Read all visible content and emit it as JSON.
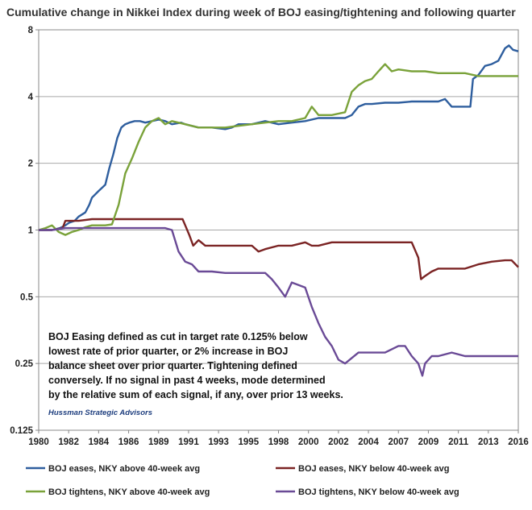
{
  "chart_data": {
    "type": "line",
    "title": "Cumulative change in Nikkei Index during week of BOJ easing/tightening and following quarter",
    "xlabel": "",
    "ylabel": "",
    "y_scale": "log2",
    "ylim": [
      0.125,
      8
    ],
    "xlim": [
      1980,
      2016
    ],
    "x_ticks": [
      "1980",
      "1982",
      "1984",
      "1986",
      "1989",
      "1991",
      "1993",
      "1995",
      "1998",
      "2000",
      "2002",
      "2004",
      "2007",
      "2009",
      "2011",
      "2013",
      "2016"
    ],
    "y_ticks": [
      "8",
      "4",
      "2",
      "1",
      "0.5",
      "0.25",
      "0.125"
    ],
    "grid": "horizontal",
    "legend_position": "bottom",
    "annotation": "BOJ Easing defined as cut in target rate 0.125% below lowest rate of prior quarter, or 2% increase in BOJ balance sheet over prior quarter.  Tightening defined conversely. If no signal in past 4 weeks, mode determined by the relative sum of each signal, if any, over prior 13 weeks.",
    "annotation_lines": [
      "BOJ Easing defined as cut in target rate 0.125% below",
      "lowest rate of prior quarter, or 2% increase in BOJ",
      "balance sheet over prior quarter.  Tightening defined",
      "conversely. If no signal in past 4 weeks, mode determined",
      "by the relative sum of each signal, if any, over prior 13 weeks."
    ],
    "credit": "Hussman Strategic Advisors",
    "series": [
      {
        "name": "BOJ eases, NKY above 40-week avg",
        "color": "#2e5e9e",
        "x": [
          1980.0,
          1981.0,
          1981.6,
          1982.0,
          1982.3,
          1982.7,
          1983.0,
          1983.5,
          1983.8,
          1984.0,
          1984.5,
          1985.0,
          1985.3,
          1985.6,
          1985.9,
          1986.2,
          1986.5,
          1986.8,
          1987.2,
          1987.6,
          1988.0,
          1988.5,
          1989.0,
          1989.5,
          1990.0,
          1990.7,
          1991.0,
          1992.0,
          1993.0,
          1994.0,
          1994.5,
          1995.0,
          1996.0,
          1997.0,
          1998.0,
          1999.0,
          2000.0,
          2001.0,
          2002.0,
          2003.0,
          2003.5,
          2004.0,
          2004.5,
          2005.0,
          2006.0,
          2007.0,
          2008.0,
          2009.0,
          2010.0,
          2010.5,
          2011.0,
          2011.5,
          2012.0,
          2012.4,
          2012.6,
          2013.0,
          2013.5,
          2014.0,
          2014.5,
          2015.0,
          2015.3,
          2015.6,
          2016.0
        ],
        "values": [
          1.0,
          1.0,
          1.02,
          1.05,
          1.08,
          1.1,
          1.15,
          1.2,
          1.3,
          1.4,
          1.5,
          1.6,
          1.9,
          2.2,
          2.6,
          2.9,
          3.0,
          3.05,
          3.1,
          3.1,
          3.05,
          3.1,
          3.15,
          3.1,
          3.0,
          3.05,
          3.0,
          2.9,
          2.9,
          2.85,
          2.9,
          3.0,
          3.0,
          3.1,
          3.0,
          3.05,
          3.1,
          3.2,
          3.2,
          3.2,
          3.3,
          3.6,
          3.7,
          3.7,
          3.75,
          3.75,
          3.8,
          3.8,
          3.8,
          3.9,
          3.6,
          3.6,
          3.6,
          3.6,
          4.8,
          5.0,
          5.5,
          5.6,
          5.8,
          6.6,
          6.8,
          6.5,
          6.4
        ]
      },
      {
        "name": "BOJ eases, NKY below 40-week avg",
        "color": "#7b2424",
        "x": [
          1980.0,
          1981.0,
          1981.8,
          1982.0,
          1983.0,
          1984.0,
          1985.0,
          1986.0,
          1987.0,
          1988.0,
          1989.0,
          1990.0,
          1990.8,
          1991.0,
          1991.3,
          1991.6,
          1992.0,
          1992.5,
          1993.0,
          1993.5,
          1994.0,
          1995.0,
          1996.0,
          1996.5,
          1997.0,
          1998.0,
          1999.0,
          2000.0,
          2000.5,
          2001.0,
          2002.0,
          2003.0,
          2004.0,
          2005.0,
          2006.0,
          2007.0,
          2008.0,
          2008.5,
          2008.7,
          2009.0,
          2009.5,
          2010.0,
          2010.5,
          2011.0,
          2012.0,
          2013.0,
          2014.0,
          2015.0,
          2015.5,
          2016.0
        ],
        "values": [
          1.0,
          1.0,
          1.02,
          1.1,
          1.1,
          1.12,
          1.12,
          1.12,
          1.12,
          1.12,
          1.12,
          1.12,
          1.12,
          1.05,
          0.95,
          0.85,
          0.9,
          0.85,
          0.85,
          0.85,
          0.85,
          0.85,
          0.85,
          0.8,
          0.82,
          0.85,
          0.85,
          0.88,
          0.85,
          0.85,
          0.88,
          0.88,
          0.88,
          0.88,
          0.88,
          0.88,
          0.88,
          0.75,
          0.6,
          0.62,
          0.65,
          0.67,
          0.67,
          0.67,
          0.67,
          0.7,
          0.72,
          0.73,
          0.73,
          0.68
        ]
      },
      {
        "name": "BOJ tightens, NKY above 40-week avg",
        "color": "#7aa23a",
        "x": [
          1980.0,
          1980.5,
          1981.0,
          1981.5,
          1982.0,
          1982.5,
          1983.0,
          1983.5,
          1984.0,
          1985.0,
          1985.5,
          1986.0,
          1986.5,
          1987.0,
          1987.5,
          1988.0,
          1988.5,
          1989.0,
          1989.5,
          1990.0,
          1991.0,
          1992.0,
          1993.0,
          1994.0,
          1995.0,
          1996.0,
          1997.0,
          1998.0,
          1999.0,
          2000.0,
          2000.5,
          2001.0,
          2002.0,
          2003.0,
          2003.5,
          2004.0,
          2004.5,
          2005.0,
          2005.5,
          2006.0,
          2006.5,
          2007.0,
          2008.0,
          2009.0,
          2010.0,
          2011.0,
          2012.0,
          2013.0,
          2014.0,
          2015.0,
          2016.0
        ],
        "values": [
          1.0,
          1.02,
          1.05,
          0.98,
          0.95,
          0.98,
          1.0,
          1.03,
          1.05,
          1.05,
          1.06,
          1.3,
          1.8,
          2.1,
          2.5,
          2.9,
          3.1,
          3.2,
          3.0,
          3.1,
          3.0,
          2.9,
          2.9,
          2.9,
          2.95,
          3.0,
          3.05,
          3.1,
          3.1,
          3.2,
          3.6,
          3.3,
          3.3,
          3.4,
          4.2,
          4.5,
          4.7,
          4.8,
          5.2,
          5.6,
          5.2,
          5.3,
          5.2,
          5.2,
          5.1,
          5.1,
          5.1,
          4.95,
          4.95,
          4.95,
          4.95
        ]
      },
      {
        "name": "BOJ tightens, NKY below 40-week avg",
        "color": "#6a4a96",
        "x": [
          1980.0,
          1981.0,
          1982.0,
          1983.0,
          1984.0,
          1985.0,
          1986.0,
          1987.0,
          1988.0,
          1989.0,
          1989.5,
          1990.0,
          1990.5,
          1991.0,
          1991.5,
          1992.0,
          1993.0,
          1994.0,
          1995.0,
          1996.0,
          1997.0,
          1997.5,
          1998.0,
          1998.5,
          1999.0,
          2000.0,
          2000.5,
          2001.0,
          2001.5,
          2002.0,
          2002.5,
          2003.0,
          2004.0,
          2005.0,
          2006.0,
          2007.0,
          2007.5,
          2008.0,
          2008.5,
          2008.8,
          2009.0,
          2009.5,
          2010.0,
          2011.0,
          2012.0,
          2013.0,
          2014.0,
          2015.0,
          2016.0
        ],
        "values": [
          1.0,
          1.0,
          1.02,
          1.02,
          1.02,
          1.02,
          1.02,
          1.02,
          1.02,
          1.02,
          1.02,
          1.0,
          0.8,
          0.72,
          0.7,
          0.65,
          0.65,
          0.64,
          0.64,
          0.64,
          0.64,
          0.6,
          0.55,
          0.5,
          0.58,
          0.55,
          0.45,
          0.38,
          0.33,
          0.3,
          0.26,
          0.25,
          0.28,
          0.28,
          0.28,
          0.3,
          0.3,
          0.27,
          0.25,
          0.22,
          0.25,
          0.27,
          0.27,
          0.28,
          0.27,
          0.27,
          0.27,
          0.27,
          0.27
        ]
      }
    ]
  }
}
